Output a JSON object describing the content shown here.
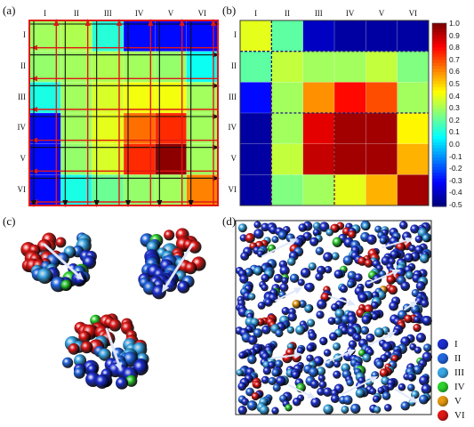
{
  "panels": {
    "a": {
      "label": "(a)"
    },
    "b": {
      "label": "(b)"
    },
    "c": {
      "label": "(c)"
    },
    "d": {
      "label": "(d)"
    }
  },
  "matrix_labels": [
    "I",
    "II",
    "III",
    "IV",
    "V",
    "VI"
  ],
  "colorbar": {
    "ticks": [
      "1.0",
      "0.9",
      "0.8",
      "0.7",
      "0.6",
      "0.5",
      "0.4",
      "0.3",
      "0.2",
      "0.1",
      "0.0",
      "-0.1",
      "-0.2",
      "-0.3",
      "-0.4",
      "-0.5"
    ],
    "min": -0.5,
    "max": 1.0
  },
  "legend": {
    "items": [
      {
        "label": "I",
        "color": "#1c2fd0"
      },
      {
        "label": "II",
        "color": "#2266e0"
      },
      {
        "label": "III",
        "color": "#3aa7e6"
      },
      {
        "label": "IV",
        "color": "#2dd22d"
      },
      {
        "label": "V",
        "color": "#e69a10"
      },
      {
        "label": "VI",
        "color": "#e01818"
      }
    ]
  },
  "chart_data": [
    {
      "type": "heatmap",
      "panel": "(a)",
      "rows": [
        "I",
        "II",
        "III",
        "IV",
        "V",
        "VI"
      ],
      "cols": [
        "I",
        "II",
        "III",
        "IV",
        "V",
        "VI"
      ],
      "values": [
        [
          0.3,
          0.32,
          0.12,
          -0.3,
          -0.3,
          -0.3
        ],
        [
          0.28,
          0.3,
          0.32,
          0.3,
          0.28,
          0.08
        ],
        [
          0.1,
          0.3,
          0.38,
          0.42,
          0.42,
          0.3
        ],
        [
          -0.3,
          0.3,
          0.4,
          0.65,
          0.75,
          0.3
        ],
        [
          -0.3,
          0.28,
          0.38,
          0.75,
          0.98,
          0.3
        ],
        [
          -0.3,
          0.1,
          0.22,
          0.28,
          0.3,
          0.62
        ]
      ]
    },
    {
      "type": "heatmap",
      "panel": "(b)",
      "rows": [
        "I",
        "II",
        "III",
        "IV",
        "V",
        "VI"
      ],
      "cols": [
        "I",
        "II",
        "III",
        "IV",
        "V",
        "VI"
      ],
      "values": [
        [
          0.4,
          0.2,
          -0.4,
          -0.45,
          -0.45,
          -0.45
        ],
        [
          0.2,
          0.35,
          0.3,
          0.3,
          0.35,
          0.25
        ],
        [
          -0.3,
          0.3,
          0.6,
          0.8,
          0.7,
          0.3
        ],
        [
          -0.45,
          0.3,
          0.85,
          0.95,
          0.95,
          0.45
        ],
        [
          -0.45,
          0.35,
          0.9,
          0.95,
          0.95,
          0.55
        ],
        [
          -0.45,
          0.25,
          0.3,
          0.4,
          0.55,
          0.95
        ]
      ]
    }
  ]
}
